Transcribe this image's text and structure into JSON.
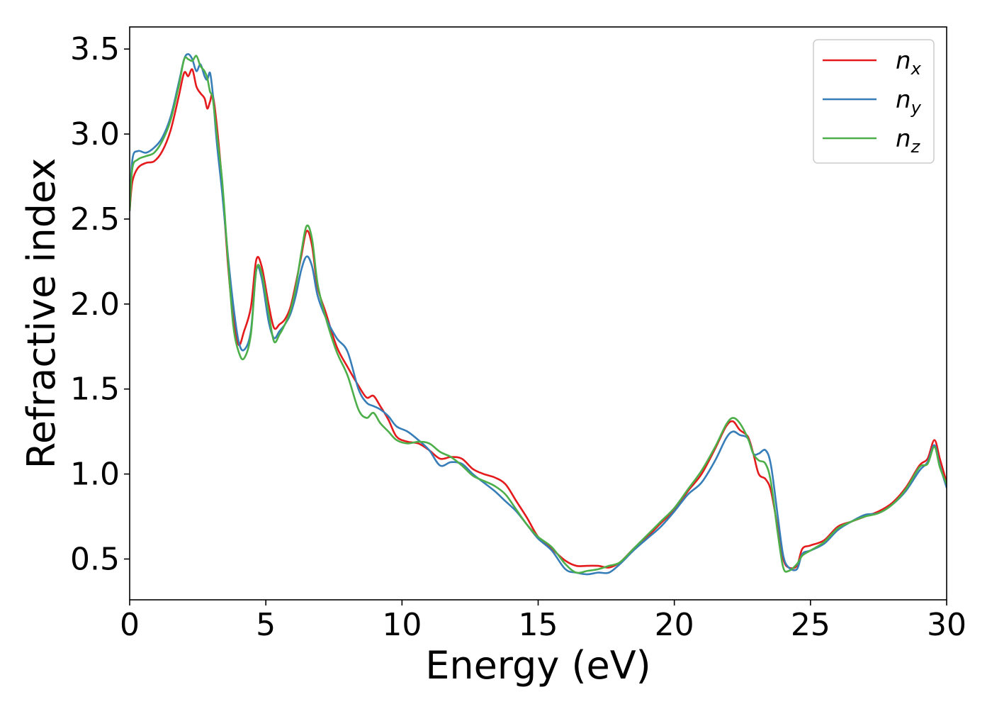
{
  "chart_data": {
    "type": "line",
    "title": "",
    "xlabel": "Energy (eV)",
    "ylabel": "Refractive index",
    "xlim": [
      0,
      30
    ],
    "ylim": [
      0.26,
      3.63
    ],
    "xticks": [
      0,
      5,
      10,
      15,
      20,
      25,
      30
    ],
    "xtick_labels": [
      "0",
      "5",
      "10",
      "15",
      "20",
      "25",
      "30"
    ],
    "yticks": [
      0.5,
      1.0,
      1.5,
      2.0,
      2.5,
      3.0,
      3.5
    ],
    "ytick_labels": [
      "0.5",
      "1.0",
      "1.5",
      "2.0",
      "2.5",
      "3.0",
      "3.5"
    ],
    "grid": false,
    "legend": "top-right",
    "series": [
      {
        "name": "n_x",
        "label_base": "n",
        "label_sub": "x",
        "color": "#e41a1c",
        "points": [
          [
            0.0,
            2.55
          ],
          [
            0.1,
            2.72
          ],
          [
            0.3,
            2.8
          ],
          [
            0.6,
            2.83
          ],
          [
            0.9,
            2.84
          ],
          [
            1.2,
            2.9
          ],
          [
            1.5,
            3.02
          ],
          [
            1.8,
            3.22
          ],
          [
            2.0,
            3.36
          ],
          [
            2.15,
            3.34
          ],
          [
            2.3,
            3.38
          ],
          [
            2.45,
            3.28
          ],
          [
            2.6,
            3.24
          ],
          [
            2.75,
            3.21
          ],
          [
            2.85,
            3.15
          ],
          [
            2.95,
            3.19
          ],
          [
            3.05,
            3.23
          ],
          [
            3.2,
            3.05
          ],
          [
            3.4,
            2.7
          ],
          [
            3.6,
            2.25
          ],
          [
            3.8,
            1.92
          ],
          [
            4.0,
            1.76
          ],
          [
            4.2,
            1.84
          ],
          [
            4.45,
            1.98
          ],
          [
            4.65,
            2.26
          ],
          [
            4.85,
            2.22
          ],
          [
            5.1,
            2.0
          ],
          [
            5.3,
            1.86
          ],
          [
            5.5,
            1.88
          ],
          [
            5.7,
            1.91
          ],
          [
            5.9,
            1.98
          ],
          [
            6.1,
            2.12
          ],
          [
            6.3,
            2.28
          ],
          [
            6.5,
            2.43
          ],
          [
            6.7,
            2.34
          ],
          [
            6.9,
            2.1
          ],
          [
            7.2,
            1.95
          ],
          [
            7.6,
            1.75
          ],
          [
            8.0,
            1.63
          ],
          [
            8.4,
            1.52
          ],
          [
            8.7,
            1.45
          ],
          [
            8.95,
            1.46
          ],
          [
            9.2,
            1.4
          ],
          [
            9.5,
            1.32
          ],
          [
            9.8,
            1.22
          ],
          [
            10.2,
            1.19
          ],
          [
            10.6,
            1.18
          ],
          [
            11.0,
            1.14
          ],
          [
            11.4,
            1.09
          ],
          [
            11.8,
            1.1
          ],
          [
            12.2,
            1.09
          ],
          [
            12.6,
            1.03
          ],
          [
            13.0,
            1.0
          ],
          [
            13.4,
            0.98
          ],
          [
            13.8,
            0.94
          ],
          [
            14.2,
            0.84
          ],
          [
            14.6,
            0.74
          ],
          [
            15.0,
            0.63
          ],
          [
            15.5,
            0.56
          ],
          [
            16.0,
            0.49
          ],
          [
            16.4,
            0.46
          ],
          [
            16.8,
            0.46
          ],
          [
            17.2,
            0.46
          ],
          [
            17.6,
            0.45
          ],
          [
            18.0,
            0.48
          ],
          [
            18.5,
            0.56
          ],
          [
            19.0,
            0.63
          ],
          [
            19.5,
            0.71
          ],
          [
            20.0,
            0.79
          ],
          [
            20.5,
            0.9
          ],
          [
            21.0,
            1.0
          ],
          [
            21.5,
            1.15
          ],
          [
            21.9,
            1.28
          ],
          [
            22.15,
            1.31
          ],
          [
            22.4,
            1.26
          ],
          [
            22.7,
            1.22
          ],
          [
            22.9,
            1.12
          ],
          [
            23.1,
            1.0
          ],
          [
            23.35,
            0.97
          ],
          [
            23.55,
            0.9
          ],
          [
            23.8,
            0.68
          ],
          [
            24.0,
            0.5
          ],
          [
            24.2,
            0.45
          ],
          [
            24.5,
            0.46
          ],
          [
            24.7,
            0.56
          ],
          [
            25.0,
            0.58
          ],
          [
            25.5,
            0.61
          ],
          [
            26.0,
            0.69
          ],
          [
            26.5,
            0.72
          ],
          [
            27.0,
            0.75
          ],
          [
            27.5,
            0.78
          ],
          [
            28.0,
            0.83
          ],
          [
            28.5,
            0.92
          ],
          [
            29.0,
            1.05
          ],
          [
            29.3,
            1.09
          ],
          [
            29.55,
            1.2
          ],
          [
            29.75,
            1.09
          ],
          [
            30.0,
            0.95
          ]
        ]
      },
      {
        "name": "n_y",
        "label_base": "n",
        "label_sub": "y",
        "color": "#377eb8",
        "points": [
          [
            0.0,
            2.55
          ],
          [
            0.1,
            2.85
          ],
          [
            0.3,
            2.9
          ],
          [
            0.6,
            2.89
          ],
          [
            0.9,
            2.92
          ],
          [
            1.2,
            2.98
          ],
          [
            1.5,
            3.1
          ],
          [
            1.8,
            3.3
          ],
          [
            2.0,
            3.44
          ],
          [
            2.15,
            3.47
          ],
          [
            2.3,
            3.44
          ],
          [
            2.45,
            3.37
          ],
          [
            2.6,
            3.41
          ],
          [
            2.75,
            3.34
          ],
          [
            2.85,
            3.32
          ],
          [
            2.95,
            3.36
          ],
          [
            3.05,
            3.24
          ],
          [
            3.2,
            2.95
          ],
          [
            3.4,
            2.65
          ],
          [
            3.6,
            2.3
          ],
          [
            3.8,
            2.0
          ],
          [
            4.0,
            1.78
          ],
          [
            4.2,
            1.73
          ],
          [
            4.45,
            1.84
          ],
          [
            4.65,
            2.2
          ],
          [
            4.85,
            2.15
          ],
          [
            5.1,
            1.9
          ],
          [
            5.3,
            1.8
          ],
          [
            5.5,
            1.84
          ],
          [
            5.7,
            1.88
          ],
          [
            5.9,
            1.94
          ],
          [
            6.1,
            2.05
          ],
          [
            6.3,
            2.2
          ],
          [
            6.5,
            2.28
          ],
          [
            6.7,
            2.22
          ],
          [
            6.9,
            2.05
          ],
          [
            7.2,
            1.92
          ],
          [
            7.6,
            1.8
          ],
          [
            8.0,
            1.72
          ],
          [
            8.4,
            1.5
          ],
          [
            8.7,
            1.42
          ],
          [
            8.95,
            1.4
          ],
          [
            9.2,
            1.38
          ],
          [
            9.5,
            1.34
          ],
          [
            9.8,
            1.28
          ],
          [
            10.2,
            1.25
          ],
          [
            10.6,
            1.2
          ],
          [
            11.0,
            1.14
          ],
          [
            11.4,
            1.05
          ],
          [
            11.8,
            1.07
          ],
          [
            12.2,
            1.06
          ],
          [
            12.6,
            1.0
          ],
          [
            13.0,
            0.95
          ],
          [
            13.4,
            0.9
          ],
          [
            13.8,
            0.84
          ],
          [
            14.2,
            0.78
          ],
          [
            14.6,
            0.7
          ],
          [
            15.0,
            0.62
          ],
          [
            15.5,
            0.55
          ],
          [
            16.0,
            0.44
          ],
          [
            16.4,
            0.42
          ],
          [
            16.8,
            0.41
          ],
          [
            17.2,
            0.42
          ],
          [
            17.6,
            0.42
          ],
          [
            18.0,
            0.47
          ],
          [
            18.5,
            0.55
          ],
          [
            19.0,
            0.62
          ],
          [
            19.5,
            0.69
          ],
          [
            20.0,
            0.78
          ],
          [
            20.5,
            0.88
          ],
          [
            21.0,
            0.95
          ],
          [
            21.5,
            1.08
          ],
          [
            21.9,
            1.21
          ],
          [
            22.15,
            1.25
          ],
          [
            22.4,
            1.23
          ],
          [
            22.7,
            1.21
          ],
          [
            22.9,
            1.12
          ],
          [
            23.1,
            1.12
          ],
          [
            23.35,
            1.14
          ],
          [
            23.55,
            1.05
          ],
          [
            23.8,
            0.75
          ],
          [
            24.0,
            0.52
          ],
          [
            24.2,
            0.45
          ],
          [
            24.5,
            0.44
          ],
          [
            24.7,
            0.53
          ],
          [
            25.0,
            0.55
          ],
          [
            25.5,
            0.59
          ],
          [
            26.0,
            0.67
          ],
          [
            26.5,
            0.72
          ],
          [
            27.0,
            0.76
          ],
          [
            27.5,
            0.77
          ],
          [
            28.0,
            0.82
          ],
          [
            28.5,
            0.9
          ],
          [
            29.0,
            1.02
          ],
          [
            29.3,
            1.07
          ],
          [
            29.55,
            1.17
          ],
          [
            29.75,
            1.05
          ],
          [
            30.0,
            0.92
          ]
        ]
      },
      {
        "name": "n_z",
        "label_base": "n",
        "label_sub": "z",
        "color": "#4daf4a",
        "points": [
          [
            0.0,
            2.55
          ],
          [
            0.1,
            2.8
          ],
          [
            0.3,
            2.85
          ],
          [
            0.6,
            2.87
          ],
          [
            0.9,
            2.89
          ],
          [
            1.2,
            2.96
          ],
          [
            1.5,
            3.08
          ],
          [
            1.8,
            3.28
          ],
          [
            2.0,
            3.44
          ],
          [
            2.15,
            3.44
          ],
          [
            2.3,
            3.43
          ],
          [
            2.45,
            3.46
          ],
          [
            2.6,
            3.4
          ],
          [
            2.75,
            3.37
          ],
          [
            2.85,
            3.33
          ],
          [
            2.95,
            3.25
          ],
          [
            3.05,
            3.21
          ],
          [
            3.2,
            3.0
          ],
          [
            3.4,
            2.72
          ],
          [
            3.6,
            2.28
          ],
          [
            3.8,
            1.88
          ],
          [
            4.0,
            1.72
          ],
          [
            4.2,
            1.68
          ],
          [
            4.45,
            1.82
          ],
          [
            4.65,
            2.2
          ],
          [
            4.85,
            2.18
          ],
          [
            5.1,
            1.95
          ],
          [
            5.3,
            1.78
          ],
          [
            5.5,
            1.82
          ],
          [
            5.7,
            1.88
          ],
          [
            5.9,
            1.96
          ],
          [
            6.1,
            2.1
          ],
          [
            6.3,
            2.3
          ],
          [
            6.5,
            2.46
          ],
          [
            6.7,
            2.38
          ],
          [
            6.9,
            2.12
          ],
          [
            7.2,
            1.92
          ],
          [
            7.6,
            1.72
          ],
          [
            8.0,
            1.58
          ],
          [
            8.4,
            1.38
          ],
          [
            8.7,
            1.33
          ],
          [
            8.95,
            1.36
          ],
          [
            9.2,
            1.3
          ],
          [
            9.5,
            1.25
          ],
          [
            9.8,
            1.2
          ],
          [
            10.2,
            1.18
          ],
          [
            10.6,
            1.19
          ],
          [
            11.0,
            1.18
          ],
          [
            11.4,
            1.13
          ],
          [
            11.8,
            1.1
          ],
          [
            12.2,
            1.05
          ],
          [
            12.6,
            0.99
          ],
          [
            13.0,
            0.96
          ],
          [
            13.4,
            0.93
          ],
          [
            13.8,
            0.88
          ],
          [
            14.2,
            0.79
          ],
          [
            14.6,
            0.7
          ],
          [
            15.0,
            0.63
          ],
          [
            15.5,
            0.57
          ],
          [
            16.0,
            0.47
          ],
          [
            16.4,
            0.42
          ],
          [
            16.8,
            0.43
          ],
          [
            17.2,
            0.44
          ],
          [
            17.6,
            0.46
          ],
          [
            18.0,
            0.48
          ],
          [
            18.5,
            0.56
          ],
          [
            19.0,
            0.64
          ],
          [
            19.5,
            0.72
          ],
          [
            20.0,
            0.8
          ],
          [
            20.5,
            0.91
          ],
          [
            21.0,
            1.02
          ],
          [
            21.5,
            1.16
          ],
          [
            21.9,
            1.29
          ],
          [
            22.15,
            1.33
          ],
          [
            22.4,
            1.3
          ],
          [
            22.7,
            1.21
          ],
          [
            22.9,
            1.12
          ],
          [
            23.1,
            1.08
          ],
          [
            23.35,
            1.06
          ],
          [
            23.55,
            0.95
          ],
          [
            23.8,
            0.65
          ],
          [
            24.0,
            0.45
          ],
          [
            24.2,
            0.43
          ],
          [
            24.5,
            0.47
          ],
          [
            24.7,
            0.52
          ],
          [
            25.0,
            0.55
          ],
          [
            25.5,
            0.6
          ],
          [
            26.0,
            0.68
          ],
          [
            26.5,
            0.72
          ],
          [
            27.0,
            0.75
          ],
          [
            27.5,
            0.77
          ],
          [
            28.0,
            0.82
          ],
          [
            28.5,
            0.91
          ],
          [
            29.0,
            1.04
          ],
          [
            29.3,
            1.06
          ],
          [
            29.55,
            1.16
          ],
          [
            29.75,
            1.04
          ],
          [
            30.0,
            0.94
          ]
        ]
      }
    ]
  }
}
